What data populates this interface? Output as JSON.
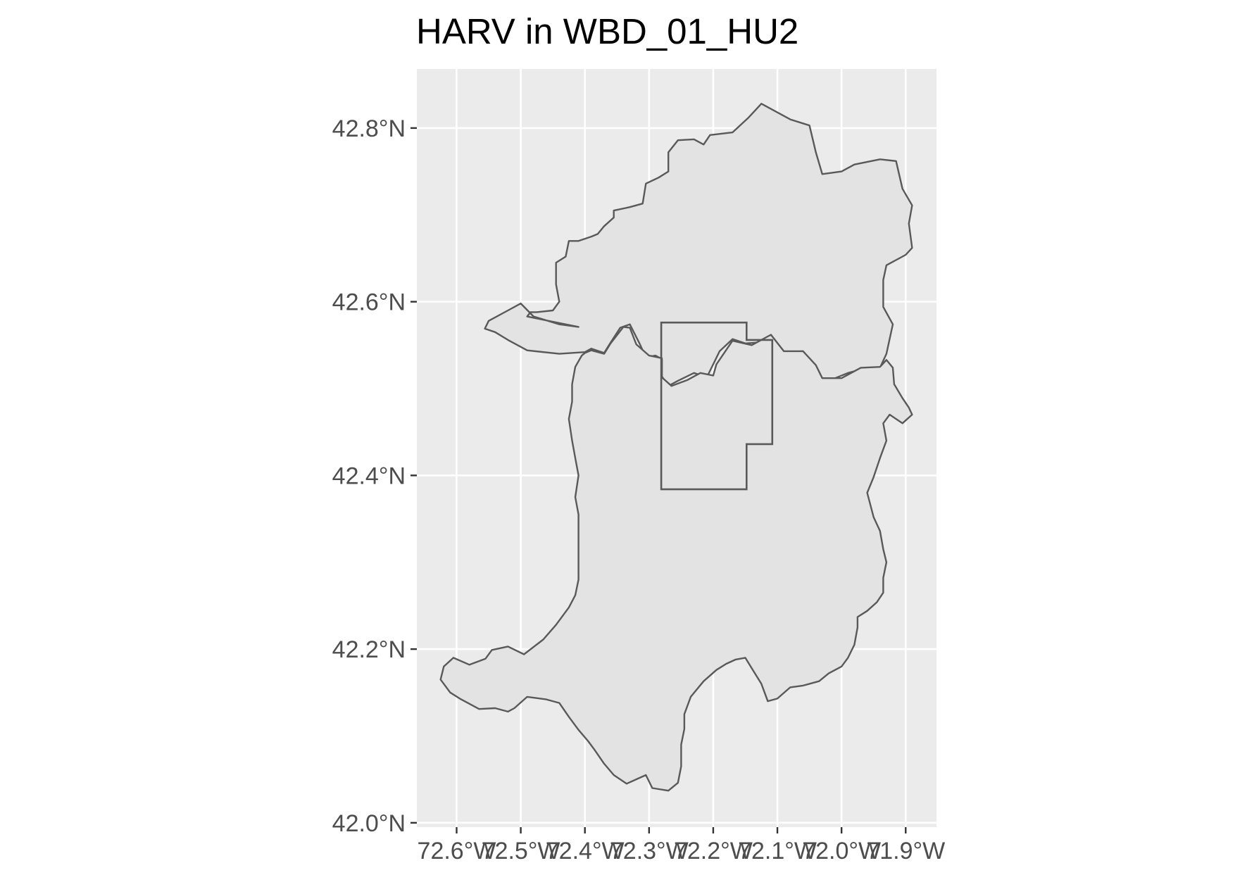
{
  "title": "HARV in WBD_01_HU2",
  "chart_data": {
    "type": "map",
    "title": "HARV in WBD_01_HU2",
    "xlabel": "",
    "ylabel": "",
    "x_tick_labels": [
      "72.6°W",
      "72.5°W",
      "72.4°W",
      "72.3°W",
      "72.2°W",
      "72.1°W",
      "72.0°W",
      "71.9°W"
    ],
    "y_tick_labels": [
      "42.0°N",
      "42.2°N",
      "42.4°N",
      "42.6°N",
      "42.8°N"
    ],
    "x_ticks": [
      -72.6,
      -72.5,
      -72.4,
      -72.3,
      -72.2,
      -72.1,
      -72.0,
      -71.9
    ],
    "y_ticks": [
      42.0,
      42.2,
      42.4,
      42.6,
      42.8
    ],
    "xlim": [
      -72.662,
      -71.852
    ],
    "ylim": [
      41.995,
      42.868
    ],
    "grid": true,
    "colors": {
      "panel": "#ebebeb",
      "grid": "#ffffff",
      "outline": "#595959",
      "fill": "#e3e3e3"
    },
    "polygons": [
      {
        "name": "",
        "points": [
          [
            -72.41,
            42.571
          ],
          [
            -72.44,
            42.574
          ],
          [
            -72.48,
            42.583
          ],
          [
            -72.5,
            42.598
          ],
          [
            -72.52,
            42.59
          ],
          [
            -72.55,
            42.578
          ],
          [
            -72.556,
            42.569
          ],
          [
            -72.54,
            42.565
          ],
          [
            -72.52,
            42.556
          ],
          [
            -72.49,
            42.544
          ],
          [
            -72.44,
            42.54
          ],
          [
            -72.4,
            42.542
          ],
          [
            -72.39,
            42.546
          ],
          [
            -72.37,
            42.541
          ],
          [
            -72.36,
            42.553
          ],
          [
            -72.345,
            42.57
          ],
          [
            -72.33,
            42.574
          ],
          [
            -72.315,
            42.552
          ],
          [
            -72.305,
            42.536
          ],
          [
            -72.29,
            42.538
          ],
          [
            -72.28,
            42.534
          ],
          [
            -72.28,
            42.514
          ],
          [
            -72.27,
            42.503
          ],
          [
            -72.255,
            42.509
          ],
          [
            -72.23,
            42.518
          ],
          [
            -72.21,
            42.513
          ],
          [
            -72.2,
            42.528
          ],
          [
            -72.19,
            42.543
          ],
          [
            -72.17,
            42.557
          ],
          [
            -72.15,
            42.552
          ],
          [
            -72.13,
            42.553
          ],
          [
            -72.11,
            42.561
          ],
          [
            -72.09,
            42.542
          ],
          [
            -72.06,
            42.543
          ],
          [
            -72.045,
            42.528
          ],
          [
            -72.03,
            42.511
          ],
          [
            -72.01,
            42.512
          ],
          [
            -71.99,
            42.518
          ],
          [
            -71.975,
            42.521
          ],
          [
            -71.94,
            42.524
          ],
          [
            -71.93,
            42.54
          ],
          [
            -71.92,
            42.574
          ],
          [
            -71.935,
            42.594
          ],
          [
            -71.935,
            42.625
          ],
          [
            -71.93,
            42.642
          ],
          [
            -71.9,
            42.654
          ],
          [
            -71.89,
            42.662
          ],
          [
            -71.895,
            42.69
          ],
          [
            -71.89,
            42.711
          ],
          [
            -71.905,
            42.73
          ],
          [
            -71.915,
            42.762
          ],
          [
            -71.94,
            42.764
          ],
          [
            -71.98,
            42.758
          ],
          [
            -72.0,
            42.75
          ],
          [
            -72.03,
            42.747
          ],
          [
            -72.04,
            42.772
          ],
          [
            -72.05,
            42.803
          ],
          [
            -72.08,
            42.81
          ],
          [
            -72.11,
            42.822
          ],
          [
            -72.125,
            42.828
          ],
          [
            -72.135,
            42.82
          ],
          [
            -72.145,
            42.812
          ],
          [
            -72.17,
            42.795
          ],
          [
            -72.205,
            42.792
          ],
          [
            -72.215,
            42.781
          ],
          [
            -72.23,
            42.787
          ],
          [
            -72.255,
            42.786
          ],
          [
            -72.27,
            42.772
          ],
          [
            -72.27,
            42.75
          ],
          [
            -72.285,
            42.743
          ],
          [
            -72.305,
            42.736
          ],
          [
            -72.31,
            42.713
          ],
          [
            -72.33,
            42.709
          ],
          [
            -72.355,
            42.705
          ],
          [
            -72.355,
            42.697
          ],
          [
            -72.37,
            42.687
          ],
          [
            -72.38,
            42.678
          ],
          [
            -72.39,
            42.675
          ],
          [
            -72.41,
            42.67
          ],
          [
            -72.425,
            42.67
          ],
          [
            -72.43,
            42.652
          ],
          [
            -72.445,
            42.645
          ],
          [
            -72.445,
            42.62
          ],
          [
            -72.44,
            42.6
          ],
          [
            -72.45,
            42.59
          ],
          [
            -72.475,
            42.588
          ],
          [
            -72.485,
            42.588
          ],
          [
            -72.49,
            42.583
          ]
        ]
      },
      {
        "name": "",
        "points": [
          [
            -72.4,
            42.541
          ],
          [
            -72.39,
            42.544
          ],
          [
            -72.37,
            42.54
          ],
          [
            -72.36,
            42.552
          ],
          [
            -72.34,
            42.571
          ],
          [
            -72.33,
            42.57
          ],
          [
            -72.32,
            42.551
          ],
          [
            -72.3,
            42.538
          ],
          [
            -72.28,
            42.535
          ],
          [
            -72.28,
            42.513
          ],
          [
            -72.265,
            42.503
          ],
          [
            -72.24,
            42.51
          ],
          [
            -72.22,
            42.518
          ],
          [
            -72.2,
            42.515
          ],
          [
            -72.195,
            42.528
          ],
          [
            -72.17,
            42.555
          ],
          [
            -72.14,
            42.55
          ],
          [
            -72.11,
            42.562
          ],
          [
            -72.09,
            42.543
          ],
          [
            -72.06,
            42.543
          ],
          [
            -72.04,
            42.527
          ],
          [
            -72.03,
            42.512
          ],
          [
            -72.0,
            42.512
          ],
          [
            -71.97,
            42.524
          ],
          [
            -71.94,
            42.525
          ],
          [
            -71.93,
            42.533
          ],
          [
            -71.92,
            42.524
          ],
          [
            -71.918,
            42.505
          ],
          [
            -71.905,
            42.489
          ],
          [
            -71.895,
            42.478
          ],
          [
            -71.89,
            42.47
          ],
          [
            -71.905,
            42.46
          ],
          [
            -71.925,
            42.47
          ],
          [
            -71.935,
            42.46
          ],
          [
            -71.93,
            42.44
          ],
          [
            -71.94,
            42.42
          ],
          [
            -71.95,
            42.398
          ],
          [
            -71.96,
            42.38
          ],
          [
            -71.95,
            42.352
          ],
          [
            -71.94,
            42.336
          ],
          [
            -71.935,
            42.315
          ],
          [
            -71.93,
            42.3
          ],
          [
            -71.935,
            42.282
          ],
          [
            -71.935,
            42.265
          ],
          [
            -71.945,
            42.254
          ],
          [
            -71.96,
            42.244
          ],
          [
            -71.975,
            42.237
          ],
          [
            -71.975,
            42.225
          ],
          [
            -71.98,
            42.205
          ],
          [
            -71.99,
            42.19
          ],
          [
            -72.0,
            42.18
          ],
          [
            -72.02,
            42.172
          ],
          [
            -72.035,
            42.163
          ],
          [
            -72.06,
            42.158
          ],
          [
            -72.08,
            42.156
          ],
          [
            -72.1,
            42.143
          ],
          [
            -72.115,
            42.14
          ],
          [
            -72.125,
            42.16
          ],
          [
            -72.14,
            42.178
          ],
          [
            -72.15,
            42.19
          ],
          [
            -72.165,
            42.188
          ],
          [
            -72.18,
            42.183
          ],
          [
            -72.195,
            42.176
          ],
          [
            -72.215,
            42.163
          ],
          [
            -72.235,
            42.145
          ],
          [
            -72.245,
            42.125
          ],
          [
            -72.245,
            42.108
          ],
          [
            -72.25,
            42.09
          ],
          [
            -72.25,
            42.065
          ],
          [
            -72.255,
            42.046
          ],
          [
            -72.27,
            42.037
          ],
          [
            -72.295,
            42.04
          ],
          [
            -72.305,
            42.055
          ],
          [
            -72.32,
            42.05
          ],
          [
            -72.335,
            42.045
          ],
          [
            -72.355,
            42.055
          ],
          [
            -72.37,
            42.068
          ],
          [
            -72.385,
            42.084
          ],
          [
            -72.395,
            42.094
          ],
          [
            -72.41,
            42.107
          ],
          [
            -72.425,
            42.122
          ],
          [
            -72.44,
            42.138
          ],
          [
            -72.46,
            42.142
          ],
          [
            -72.49,
            42.145
          ],
          [
            -72.51,
            42.132
          ],
          [
            -72.52,
            42.128
          ],
          [
            -72.54,
            42.132
          ],
          [
            -72.565,
            42.131
          ],
          [
            -72.58,
            42.137
          ],
          [
            -72.595,
            42.143
          ],
          [
            -72.61,
            42.15
          ],
          [
            -72.625,
            42.165
          ],
          [
            -72.62,
            42.18
          ],
          [
            -72.605,
            42.19
          ],
          [
            -72.58,
            42.182
          ],
          [
            -72.555,
            42.189
          ],
          [
            -72.545,
            42.199
          ],
          [
            -72.52,
            42.203
          ],
          [
            -72.495,
            42.194
          ],
          [
            -72.465,
            42.211
          ],
          [
            -72.445,
            42.228
          ],
          [
            -72.425,
            42.248
          ],
          [
            -72.415,
            42.262
          ],
          [
            -72.41,
            42.28
          ],
          [
            -72.41,
            42.305
          ],
          [
            -72.41,
            42.325
          ],
          [
            -72.41,
            42.355
          ],
          [
            -72.415,
            42.375
          ],
          [
            -72.41,
            42.4
          ],
          [
            -72.415,
            42.42
          ],
          [
            -72.42,
            42.44
          ],
          [
            -72.425,
            42.465
          ],
          [
            -72.42,
            42.485
          ],
          [
            -72.42,
            42.505
          ],
          [
            -72.415,
            42.525
          ],
          [
            -72.405,
            42.538
          ]
        ]
      }
    ],
    "boundary": {
      "name": "",
      "points": [
        [
          -72.281,
          42.576
        ],
        [
          -72.148,
          42.576
        ],
        [
          -72.148,
          42.556
        ],
        [
          -72.108,
          42.556
        ],
        [
          -72.108,
          42.436
        ],
        [
          -72.148,
          42.436
        ],
        [
          -72.148,
          42.384
        ],
        [
          -72.281,
          42.384
        ]
      ]
    }
  }
}
